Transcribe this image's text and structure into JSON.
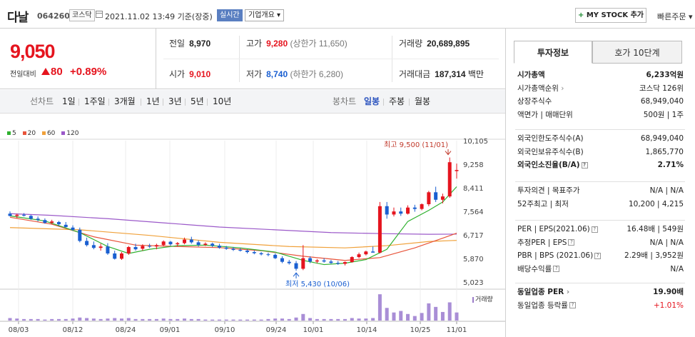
{
  "header": {
    "stock_name": "다날",
    "stock_code": "064260",
    "market_badge": "코스닥",
    "datetime": "2021.11.02 13:49 기준(장중)",
    "realtime_label": "실시간",
    "company_label": "기업개요 ▾",
    "mystock_plus": "+",
    "mystock_label": "MY STOCK 추가",
    "quick_order": "빠른주문 ▾"
  },
  "price": {
    "current": "9,050",
    "change_label": "전일대비",
    "change": "80",
    "change_pct": "+0.89%"
  },
  "info": {
    "prev_close_label": "전일",
    "prev_close": "8,970",
    "high_label": "고가",
    "high": "9,280",
    "high_limit": "(상한가 11,650)",
    "volume_label": "거래량",
    "volume": "20,689,895",
    "open_label": "시가",
    "open": "9,010",
    "low_label": "저가",
    "low": "8,740",
    "low_limit": "(하한가 6,280)",
    "amount_label": "거래대금",
    "amount": "187,314",
    "amount_unit": "백만"
  },
  "period_bar": {
    "line_label": "선차트",
    "line_periods": [
      "1일",
      "1주일",
      "3개월",
      "1년",
      "3년",
      "5년",
      "10년"
    ],
    "candle_label": "봉차트",
    "candle_periods": [
      "일봉",
      "주봉",
      "월봉"
    ],
    "active_candle": "일봉"
  },
  "chart_data": {
    "type": "candlestick",
    "legend": [
      {
        "name": "5",
        "color": "#2fb12f"
      },
      {
        "name": "20",
        "color": "#e8543a"
      },
      {
        "name": "60",
        "color": "#f0a13a"
      },
      {
        "name": "120",
        "color": "#9b59c9"
      }
    ],
    "y_ticks": [
      "10,105",
      "9,258",
      "8,411",
      "7,564",
      "6,717",
      "5,870",
      "5,023"
    ],
    "x_ticks": [
      "08/03",
      "08/12",
      "08/24",
      "09/01",
      "09/10",
      "09/24",
      "10/01",
      "10/14",
      "10/25",
      "11/01"
    ],
    "ylim": [
      5023,
      10105
    ],
    "max_annotation": "최고 9,500 (11/01)",
    "min_annotation": "최저 5,430 (10/06)",
    "volume_label": "거래량",
    "colors": {
      "up": "#e5141e",
      "down": "#1a5fd1"
    }
  },
  "sidebar": {
    "tab_active": "투자정보",
    "tab_inactive": "호가 10단계",
    "group1": [
      {
        "k": "시가총액",
        "v": "6,233억원",
        "bold": true
      },
      {
        "k": "시가총액순위",
        "v": "코스닥 126위",
        "arrow": true
      },
      {
        "k": "상장주식수",
        "v": "68,949,040"
      },
      {
        "k": "액면가 | 매매단위",
        "v": "500원 | 1주"
      }
    ],
    "group2": [
      {
        "k": "외국인한도주식수(A)",
        "v": "68,949,040"
      },
      {
        "k": "외국인보유주식수(B)",
        "v": "1,865,770"
      },
      {
        "k": "외국인소진율(B/A)",
        "v": "2.71%",
        "bold": true,
        "qm": true
      }
    ],
    "group3": [
      {
        "k": "투자의견 | 목표주가",
        "v": "N/A | N/A"
      },
      {
        "k": "52주최고 | 최저",
        "v": "10,200 | 4,215"
      }
    ],
    "group4": [
      {
        "k": "PER | EPS(2021.06)",
        "v": "16.48배 | 549원",
        "qm": true
      },
      {
        "k": "추정PER | EPS",
        "v": "N/A | N/A",
        "qm": true
      },
      {
        "k": "PBR | BPS (2021.06)",
        "v": "2.29배 | 3,952원",
        "qm": true
      },
      {
        "k": "배당수익률",
        "v": "N/A",
        "qm": true
      }
    ],
    "group5": [
      {
        "k": "동일업종 PER",
        "v": "19.90배",
        "bold": true,
        "arrow": true
      },
      {
        "k": "동일업종 등락률",
        "v": "+1.01%",
        "red": true,
        "qm": true
      }
    ]
  }
}
